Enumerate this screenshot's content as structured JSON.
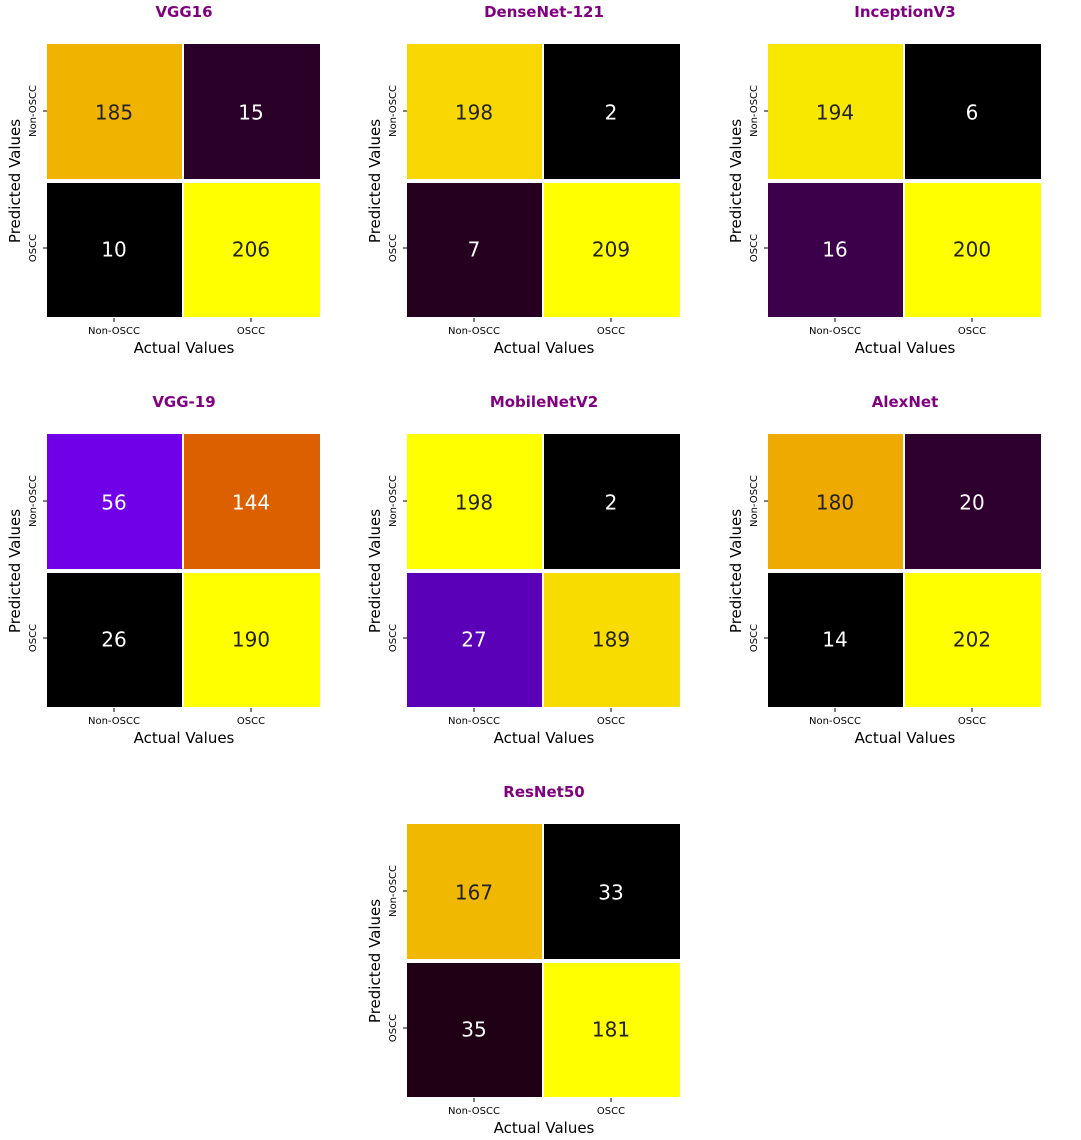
{
  "chart_data": [
    {
      "type": "heatmap",
      "title": "VGG16",
      "xlabel": "Actual Values",
      "ylabel": "Predicted Values",
      "x_categories": [
        "Non-OSCC",
        "OSCC"
      ],
      "y_categories": [
        "Non-OSCC",
        "OSCC"
      ],
      "matrix": [
        [
          185,
          15
        ],
        [
          10,
          206
        ]
      ],
      "cell_colors": [
        [
          "#f0b400",
          "#2a0028"
        ],
        [
          "#000000",
          "#ffff00"
        ]
      ],
      "text_colors": [
        [
          "#222222",
          "#ffffff"
        ],
        [
          "#ffffff",
          "#222222"
        ]
      ]
    },
    {
      "type": "heatmap",
      "title": "DenseNet-121",
      "xlabel": "Actual Values",
      "ylabel": "Predicted Values",
      "x_categories": [
        "Non-OSCC",
        "OSCC"
      ],
      "y_categories": [
        "Non-OSCC",
        "OSCC"
      ],
      "matrix": [
        [
          198,
          2
        ],
        [
          7,
          209
        ]
      ],
      "cell_colors": [
        [
          "#f8d800",
          "#000000"
        ],
        [
          "#25001f",
          "#ffff00"
        ]
      ],
      "text_colors": [
        [
          "#222222",
          "#ffffff"
        ],
        [
          "#ffffff",
          "#222222"
        ]
      ]
    },
    {
      "type": "heatmap",
      "title": "InceptionV3",
      "xlabel": "Actual Values",
      "ylabel": "Predicted Values",
      "x_categories": [
        "Non-OSCC",
        "OSCC"
      ],
      "y_categories": [
        "Non-OSCC",
        "OSCC"
      ],
      "matrix": [
        [
          194,
          6
        ],
        [
          16,
          200
        ]
      ],
      "cell_colors": [
        [
          "#f8e800",
          "#000000"
        ],
        [
          "#3c004b",
          "#ffff00"
        ]
      ],
      "text_colors": [
        [
          "#222222",
          "#ffffff"
        ],
        [
          "#ffffff",
          "#222222"
        ]
      ]
    },
    {
      "type": "heatmap",
      "title": "VGG-19",
      "xlabel": "Actual Values",
      "ylabel": "Predicted Values",
      "x_categories": [
        "Non-OSCC",
        "OSCC"
      ],
      "y_categories": [
        "Non-OSCC",
        "OSCC"
      ],
      "matrix": [
        [
          56,
          144
        ],
        [
          26,
          190
        ]
      ],
      "cell_colors": [
        [
          "#6f00e8",
          "#dd6000"
        ],
        [
          "#000000",
          "#ffff00"
        ]
      ],
      "text_colors": [
        [
          "#ffffff",
          "#ffffff"
        ],
        [
          "#ffffff",
          "#222222"
        ]
      ]
    },
    {
      "type": "heatmap",
      "title": "MobileNetV2",
      "xlabel": "Actual Values",
      "ylabel": "Predicted Values",
      "x_categories": [
        "Non-OSCC",
        "OSCC"
      ],
      "y_categories": [
        "Non-OSCC",
        "OSCC"
      ],
      "matrix": [
        [
          198,
          2
        ],
        [
          27,
          189
        ]
      ],
      "cell_colors": [
        [
          "#ffff00",
          "#000000"
        ],
        [
          "#5a00b6",
          "#f8dc00"
        ]
      ],
      "text_colors": [
        [
          "#222222",
          "#ffffff"
        ],
        [
          "#ffffff",
          "#222222"
        ]
      ]
    },
    {
      "type": "heatmap",
      "title": "AlexNet",
      "xlabel": "Actual Values",
      "ylabel": "Predicted Values",
      "x_categories": [
        "Non-OSCC",
        "OSCC"
      ],
      "y_categories": [
        "Non-OSCC",
        "OSCC"
      ],
      "matrix": [
        [
          180,
          20
        ],
        [
          14,
          202
        ]
      ],
      "cell_colors": [
        [
          "#eeaa00",
          "#2e0030"
        ],
        [
          "#000000",
          "#ffff00"
        ]
      ],
      "text_colors": [
        [
          "#222222",
          "#ffffff"
        ],
        [
          "#ffffff",
          "#222222"
        ]
      ]
    },
    {
      "type": "heatmap",
      "title": "ResNet50",
      "xlabel": "Actual Values",
      "ylabel": "Predicted Values",
      "x_categories": [
        "Non-OSCC",
        "OSCC"
      ],
      "y_categories": [
        "Non-OSCC",
        "OSCC"
      ],
      "matrix": [
        [
          167,
          33
        ],
        [
          35,
          181
        ]
      ],
      "cell_colors": [
        [
          "#f0b800",
          "#000000"
        ],
        [
          "#200014",
          "#ffff00"
        ]
      ],
      "text_colors": [
        [
          "#222222",
          "#ffffff"
        ],
        [
          "#ffffff",
          "#222222"
        ]
      ]
    }
  ],
  "colors": {
    "title": "#800080",
    "axis_text": "#000000",
    "cell_gap": "#ffffff"
  }
}
